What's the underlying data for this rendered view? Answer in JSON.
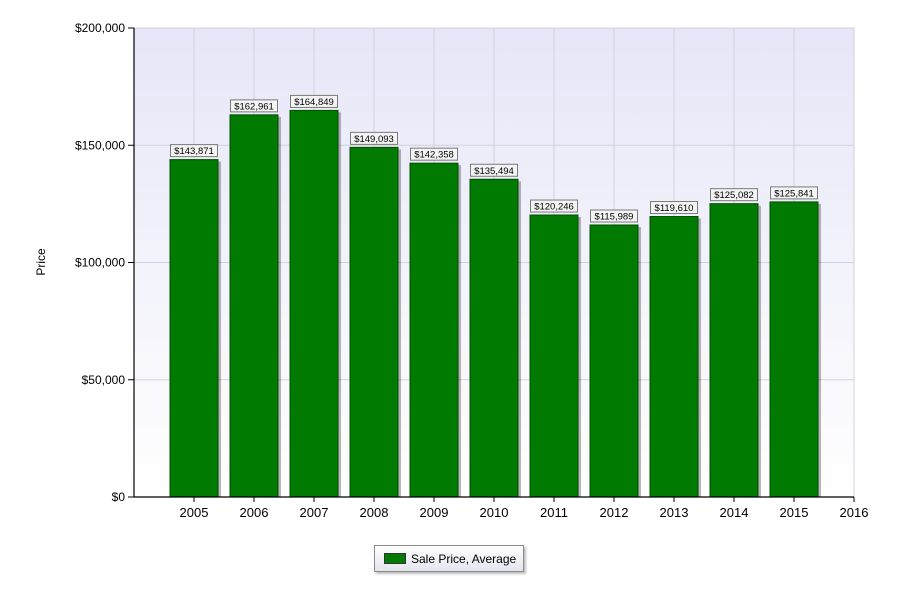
{
  "chart_data": {
    "type": "bar",
    "categories": [
      "2005",
      "2006",
      "2007",
      "2008",
      "2009",
      "2010",
      "2011",
      "2012",
      "2013",
      "2014",
      "2015"
    ],
    "x_ticks": [
      "2005",
      "2006",
      "2007",
      "2008",
      "2009",
      "2010",
      "2011",
      "2012",
      "2013",
      "2014",
      "2015",
      "2016"
    ],
    "series": [
      {
        "name": "Sale Price, Average",
        "values": [
          143871,
          162961,
          164849,
          149093,
          142358,
          135494,
          120246,
          115989,
          119610,
          125082,
          125841
        ],
        "labels": [
          "$143,871",
          "$162,961",
          "$164,849",
          "$149,093",
          "$142,358",
          "$135,494",
          "$120,246",
          "$115,989",
          "$119,610",
          "$125,082",
          "$125,841"
        ],
        "color": "#007a00"
      }
    ],
    "y_ticks": [
      {
        "value": 0,
        "label": "$0"
      },
      {
        "value": 50000,
        "label": "$50,000"
      },
      {
        "value": 100000,
        "label": "$100,000"
      },
      {
        "value": 150000,
        "label": "$150,000"
      },
      {
        "value": 200000,
        "label": "$200,000"
      }
    ],
    "title": "",
    "xlabel": "",
    "ylabel": "Price",
    "ylim": [
      0,
      200000
    ],
    "grid": true,
    "legend_position": "bottom-center",
    "plot_background": "#ebebfa",
    "grid_color": "#d2d2de"
  }
}
